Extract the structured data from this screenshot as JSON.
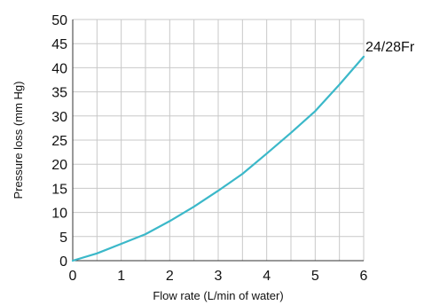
{
  "chart_data": {
    "type": "line",
    "xlabel": "Flow rate (L/min of water)",
    "ylabel": "Pressure loss (mm Hg)",
    "xlim": [
      0,
      6
    ],
    "ylim": [
      0,
      50
    ],
    "x_ticks": [
      "0",
      "1",
      "2",
      "3",
      "4",
      "5",
      "6"
    ],
    "y_ticks": [
      "0",
      "5",
      "10",
      "15",
      "20",
      "25",
      "30",
      "35",
      "40",
      "45",
      "50"
    ],
    "grid": true,
    "series": [
      {
        "name": "24/28Fr",
        "color": "#3bb8c9",
        "x": [
          0,
          0.5,
          1,
          1.5,
          2,
          2.5,
          3,
          3.5,
          4,
          4.5,
          5,
          5.5,
          6
        ],
        "y": [
          0,
          1.5,
          3.5,
          5.5,
          8.2,
          11.2,
          14.5,
          18,
          22.2,
          26.5,
          31,
          36.5,
          42.3
        ]
      }
    ]
  }
}
